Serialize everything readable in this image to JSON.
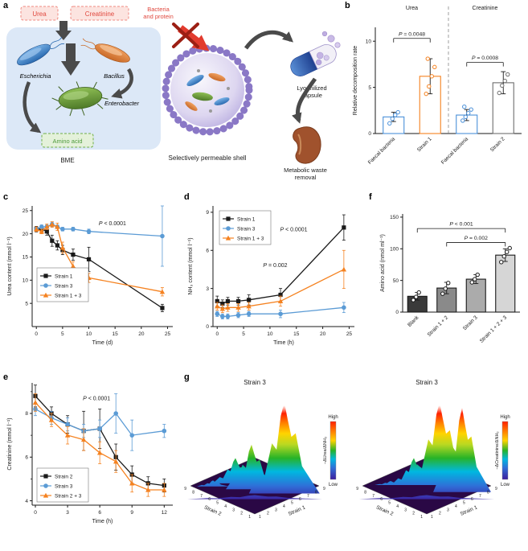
{
  "figure": {
    "panel_labels": {
      "a": "a",
      "b": "b",
      "c": "c",
      "d": "d",
      "e": "e",
      "f": "f",
      "g": "g"
    }
  },
  "panel_a": {
    "urea": "Urea",
    "creatinine": "Creatinine",
    "bacteria_protein_line1": "Bacteria",
    "bacteria_protein_line2": "and protein",
    "escherichia": "Escherichia",
    "bacillus": "Bacillus",
    "enterobacter": "Enterobacter",
    "amino_acid": "Amino acid",
    "bme": "BME",
    "shell_label": "Selectively permeable shell",
    "capsule_label_line1": "Lyophilized",
    "capsule_label_line2": "capsule",
    "waste_label_line1": "Metabolic waste",
    "waste_label_line2": "removal"
  },
  "chart_data": [
    {
      "id": "b",
      "type": "bar",
      "ylabel": "Relative decomposition rate",
      "ylim": [
        0,
        11.5
      ],
      "yticks": [
        0,
        5,
        10
      ],
      "group_headers": [
        "Urea",
        "Creatinine"
      ],
      "categories": [
        "Faecal bacteria",
        "Strain 1",
        "Faecal bacteria",
        "Strain 2"
      ],
      "values": [
        1.8,
        6.2,
        2.0,
        5.5
      ],
      "errors": [
        0.5,
        1.9,
        0.6,
        1.2
      ],
      "bar_style": "outline",
      "bar_colors": [
        "#4a90d9",
        "#f58220",
        "#4a90d9",
        "#6e6e6e"
      ],
      "points": [
        [
          1.1,
          1.6,
          2.0,
          2.3
        ],
        [
          4.3,
          5.1,
          6.2,
          7.2,
          8.1
        ],
        [
          1.4,
          1.8,
          2.2,
          2.6,
          2.9
        ],
        [
          4.4,
          5.2,
          5.7,
          6.4
        ]
      ],
      "brackets": [
        {
          "from": 0,
          "to": 1,
          "y": 10.3,
          "label": "P = 0.0048"
        },
        {
          "from": 2,
          "to": 3,
          "y": 7.7,
          "label": "P = 0.0008"
        }
      ],
      "divider_after": 2
    },
    {
      "id": "c",
      "type": "line",
      "xlabel": "Time (d)",
      "ylabel": "Urea content (mmol l⁻¹)",
      "xlim": [
        -0.8,
        26
      ],
      "ylim": [
        0,
        26
      ],
      "xticks": [
        0,
        5,
        10,
        15,
        20,
        25
      ],
      "yticks": [
        5,
        10,
        15,
        20,
        25
      ],
      "annotations": [
        {
          "text": "P < 0.0001",
          "x": 14.5,
          "y": 21.8
        }
      ],
      "series": [
        {
          "name": "Strain 1",
          "color": "#1a1a1a",
          "marker": "square",
          "x": [
            0,
            1,
            2,
            3,
            4,
            5,
            7,
            10,
            24
          ],
          "y": [
            21,
            21,
            20.5,
            18.5,
            17.5,
            16.5,
            15.5,
            14.5,
            4
          ],
          "err": [
            0.6,
            0.5,
            0.8,
            1.2,
            1.0,
            1.0,
            1.2,
            2.6,
            0.8
          ]
        },
        {
          "name": "Strain 3",
          "color": "#5b9bd5",
          "marker": "circle",
          "x": [
            0,
            1,
            2,
            3,
            4,
            5,
            7,
            10,
            24
          ],
          "y": [
            21,
            21.5,
            21.5,
            22,
            21.5,
            21,
            21,
            20.5,
            19.5
          ],
          "err": [
            0.4,
            0.4,
            0.4,
            0.5,
            0.4,
            0.4,
            0.4,
            0.5,
            6.5
          ]
        },
        {
          "name": "Strain 1 + 3",
          "color": "#f58220",
          "marker": "triangle",
          "x": [
            0,
            1,
            2,
            3,
            4,
            5,
            7,
            10,
            24
          ],
          "y": [
            21,
            20.5,
            21.5,
            22,
            21.5,
            17,
            13,
            10.5,
            7.5
          ],
          "err": [
            0.5,
            0.5,
            0.6,
            0.6,
            0.8,
            1.2,
            1.0,
            1.0,
            0.9
          ]
        }
      ]
    },
    {
      "id": "d",
      "type": "line",
      "xlabel": "Time (h)",
      "ylabel": "NH₃ content (mmol l⁻¹)",
      "xlim": [
        -0.8,
        26
      ],
      "ylim": [
        0,
        9.5
      ],
      "xticks": [
        0,
        5,
        10,
        15,
        20,
        25
      ],
      "yticks": [
        0,
        3,
        6,
        9
      ],
      "annotations": [
        {
          "text": "P < 0.0001",
          "x": 14.5,
          "y": 7.5
        },
        {
          "text": "P = 0.002",
          "x": 11,
          "y": 4.7
        }
      ],
      "series": [
        {
          "name": "Strain 1",
          "color": "#1a1a1a",
          "marker": "square",
          "x": [
            0,
            1,
            2,
            4,
            6,
            12,
            24
          ],
          "y": [
            2.0,
            1.8,
            2.0,
            2.0,
            2.1,
            2.5,
            7.8
          ],
          "err": [
            0.4,
            0.3,
            0.3,
            0.3,
            0.4,
            0.5,
            1.0
          ]
        },
        {
          "name": "Strain 3",
          "color": "#5b9bd5",
          "marker": "circle",
          "x": [
            0,
            1,
            2,
            4,
            6,
            12,
            24
          ],
          "y": [
            1.0,
            0.8,
            0.8,
            0.9,
            1.0,
            1.0,
            1.5
          ],
          "err": [
            0.2,
            0.2,
            0.2,
            0.2,
            0.2,
            0.3,
            0.4
          ]
        },
        {
          "name": "Strain 1 + 3",
          "color": "#f58220",
          "marker": "triangle",
          "x": [
            0,
            1,
            2,
            4,
            6,
            12,
            24
          ],
          "y": [
            1.6,
            1.4,
            1.5,
            1.5,
            1.6,
            2.0,
            4.5
          ],
          "err": [
            0.3,
            0.3,
            0.3,
            0.3,
            0.3,
            0.4,
            1.5
          ]
        }
      ]
    },
    {
      "id": "e",
      "type": "line",
      "xlabel": "Time (h)",
      "ylabel": "Creatinine (mmol l⁻¹)",
      "xlim": [
        -0.3,
        12.8
      ],
      "ylim": [
        3.8,
        9.4
      ],
      "xticks": [
        0,
        3,
        6,
        9,
        12
      ],
      "yticks": [
        4,
        6,
        8
      ],
      "yticks_minor": [
        5,
        7,
        9
      ],
      "annotations": [
        {
          "text": "P < 0.0001",
          "x": 5.7,
          "y": 8.6
        }
      ],
      "series": [
        {
          "name": "Strain 2",
          "color": "#1a1a1a",
          "marker": "square",
          "x": [
            0,
            1.5,
            3,
            4.5,
            6,
            7.5,
            9,
            10.5,
            12
          ],
          "y": [
            8.8,
            8.0,
            7.5,
            7.2,
            7.3,
            6.0,
            5.2,
            4.8,
            4.7
          ],
          "err": [
            0.5,
            0.3,
            0.4,
            0.9,
            0.9,
            0.6,
            0.4,
            0.3,
            0.3
          ]
        },
        {
          "name": "Strain 3",
          "color": "#5b9bd5",
          "marker": "circle",
          "x": [
            0,
            1.5,
            3,
            4.5,
            6,
            7.5,
            9,
            12
          ],
          "y": [
            8.2,
            7.8,
            7.5,
            7.2,
            7.3,
            8.0,
            7.0,
            7.2
          ],
          "err": [
            0.3,
            0.3,
            0.3,
            0.3,
            0.4,
            0.9,
            0.7,
            0.3
          ]
        },
        {
          "name": "Strain 2 + 3",
          "color": "#f58220",
          "marker": "triangle",
          "x": [
            0,
            1.5,
            3,
            4.5,
            6,
            7.5,
            9,
            10.5,
            12
          ],
          "y": [
            8.5,
            7.7,
            7.0,
            6.8,
            6.2,
            5.8,
            4.8,
            4.5,
            4.5
          ],
          "err": [
            0.4,
            0.3,
            0.4,
            0.5,
            0.5,
            0.5,
            0.4,
            0.3,
            0.3
          ]
        }
      ]
    },
    {
      "id": "f",
      "type": "bar",
      "ylabel": "Amino acid (nmol ml⁻¹)",
      "ylim": [
        0,
        155
      ],
      "yticks": [
        0,
        50,
        100,
        150
      ],
      "categories": [
        "Blank",
        "Strain 1 + 2",
        "Strain 3",
        "Strain 1 + 2 + 3"
      ],
      "values": [
        25,
        38,
        52,
        90
      ],
      "errors": [
        6,
        9,
        7,
        10
      ],
      "bar_style": "fill",
      "bar_colors": [
        "#3a3a3a",
        "#8a8a8a",
        "#ababab",
        "#d6d6d6"
      ],
      "point_color": "#1a1a1a",
      "points": [
        [
          19,
          24,
          31
        ],
        [
          29,
          37,
          46
        ],
        [
          47,
          52,
          59
        ],
        [
          79,
          88,
          95,
          101
        ]
      ],
      "brackets": [
        {
          "from": 0,
          "to": 3,
          "y": 132,
          "label": "P < 0.001"
        },
        {
          "from": 1,
          "to": 3,
          "y": 110,
          "label": "P = 0.002"
        }
      ]
    },
    {
      "id": "g",
      "type": "surface3d",
      "plots": [
        {
          "title": "Strain 3",
          "axis_left": "Strain 2",
          "axis_right": "Strain 1",
          "ticks_left": [
            "9",
            "8",
            "7",
            "6",
            "5",
            "4",
            "3",
            "2",
            "1"
          ],
          "ticks_right": [
            "1",
            "2",
            "3",
            "4",
            "5",
            "6",
            "7",
            "8",
            "9"
          ],
          "colorbar_high": "High",
          "colorbar_low": "Low",
          "zlabel": "−ΔUrea/ΔNH₃",
          "peaks": [
            {
              "u": 0.65,
              "v": 0.65,
              "w": 1.05,
              "h": 0.12
            },
            {
              "u": 0.78,
              "v": 0.32,
              "w": 0.55,
              "h": 1.0
            },
            {
              "u": 0.45,
              "v": 0.5,
              "w": 0.4,
              "h": 0.62
            },
            {
              "u": 0.22,
              "v": 0.52,
              "w": 0.35,
              "h": 0.5
            },
            {
              "u": 0.1,
              "v": 0.75,
              "w": 0.25,
              "h": 0.3
            }
          ]
        },
        {
          "title": "Strain 3",
          "axis_left": "Strain 2",
          "axis_right": "Strain 1",
          "ticks_left": [
            "9",
            "8",
            "7",
            "6",
            "5",
            "4",
            "3",
            "2",
            "1"
          ],
          "ticks_right": [
            "1",
            "2",
            "3",
            "4",
            "5",
            "6",
            "7",
            "8",
            "9"
          ],
          "colorbar_high": "High",
          "colorbar_low": "Low",
          "zlabel": "−ΔCreatinine/ΔNH₃",
          "peaks": [
            {
              "u": 0.65,
              "v": 0.65,
              "w": 1.05,
              "h": 0.12
            },
            {
              "u": 0.5,
              "v": 0.3,
              "w": 0.5,
              "h": 1.0
            },
            {
              "u": 0.8,
              "v": 0.25,
              "w": 0.45,
              "h": 0.95
            },
            {
              "u": 0.3,
              "v": 0.5,
              "w": 0.35,
              "h": 0.5
            },
            {
              "u": 0.12,
              "v": 0.68,
              "w": 0.25,
              "h": 0.28
            }
          ]
        }
      ]
    }
  ]
}
